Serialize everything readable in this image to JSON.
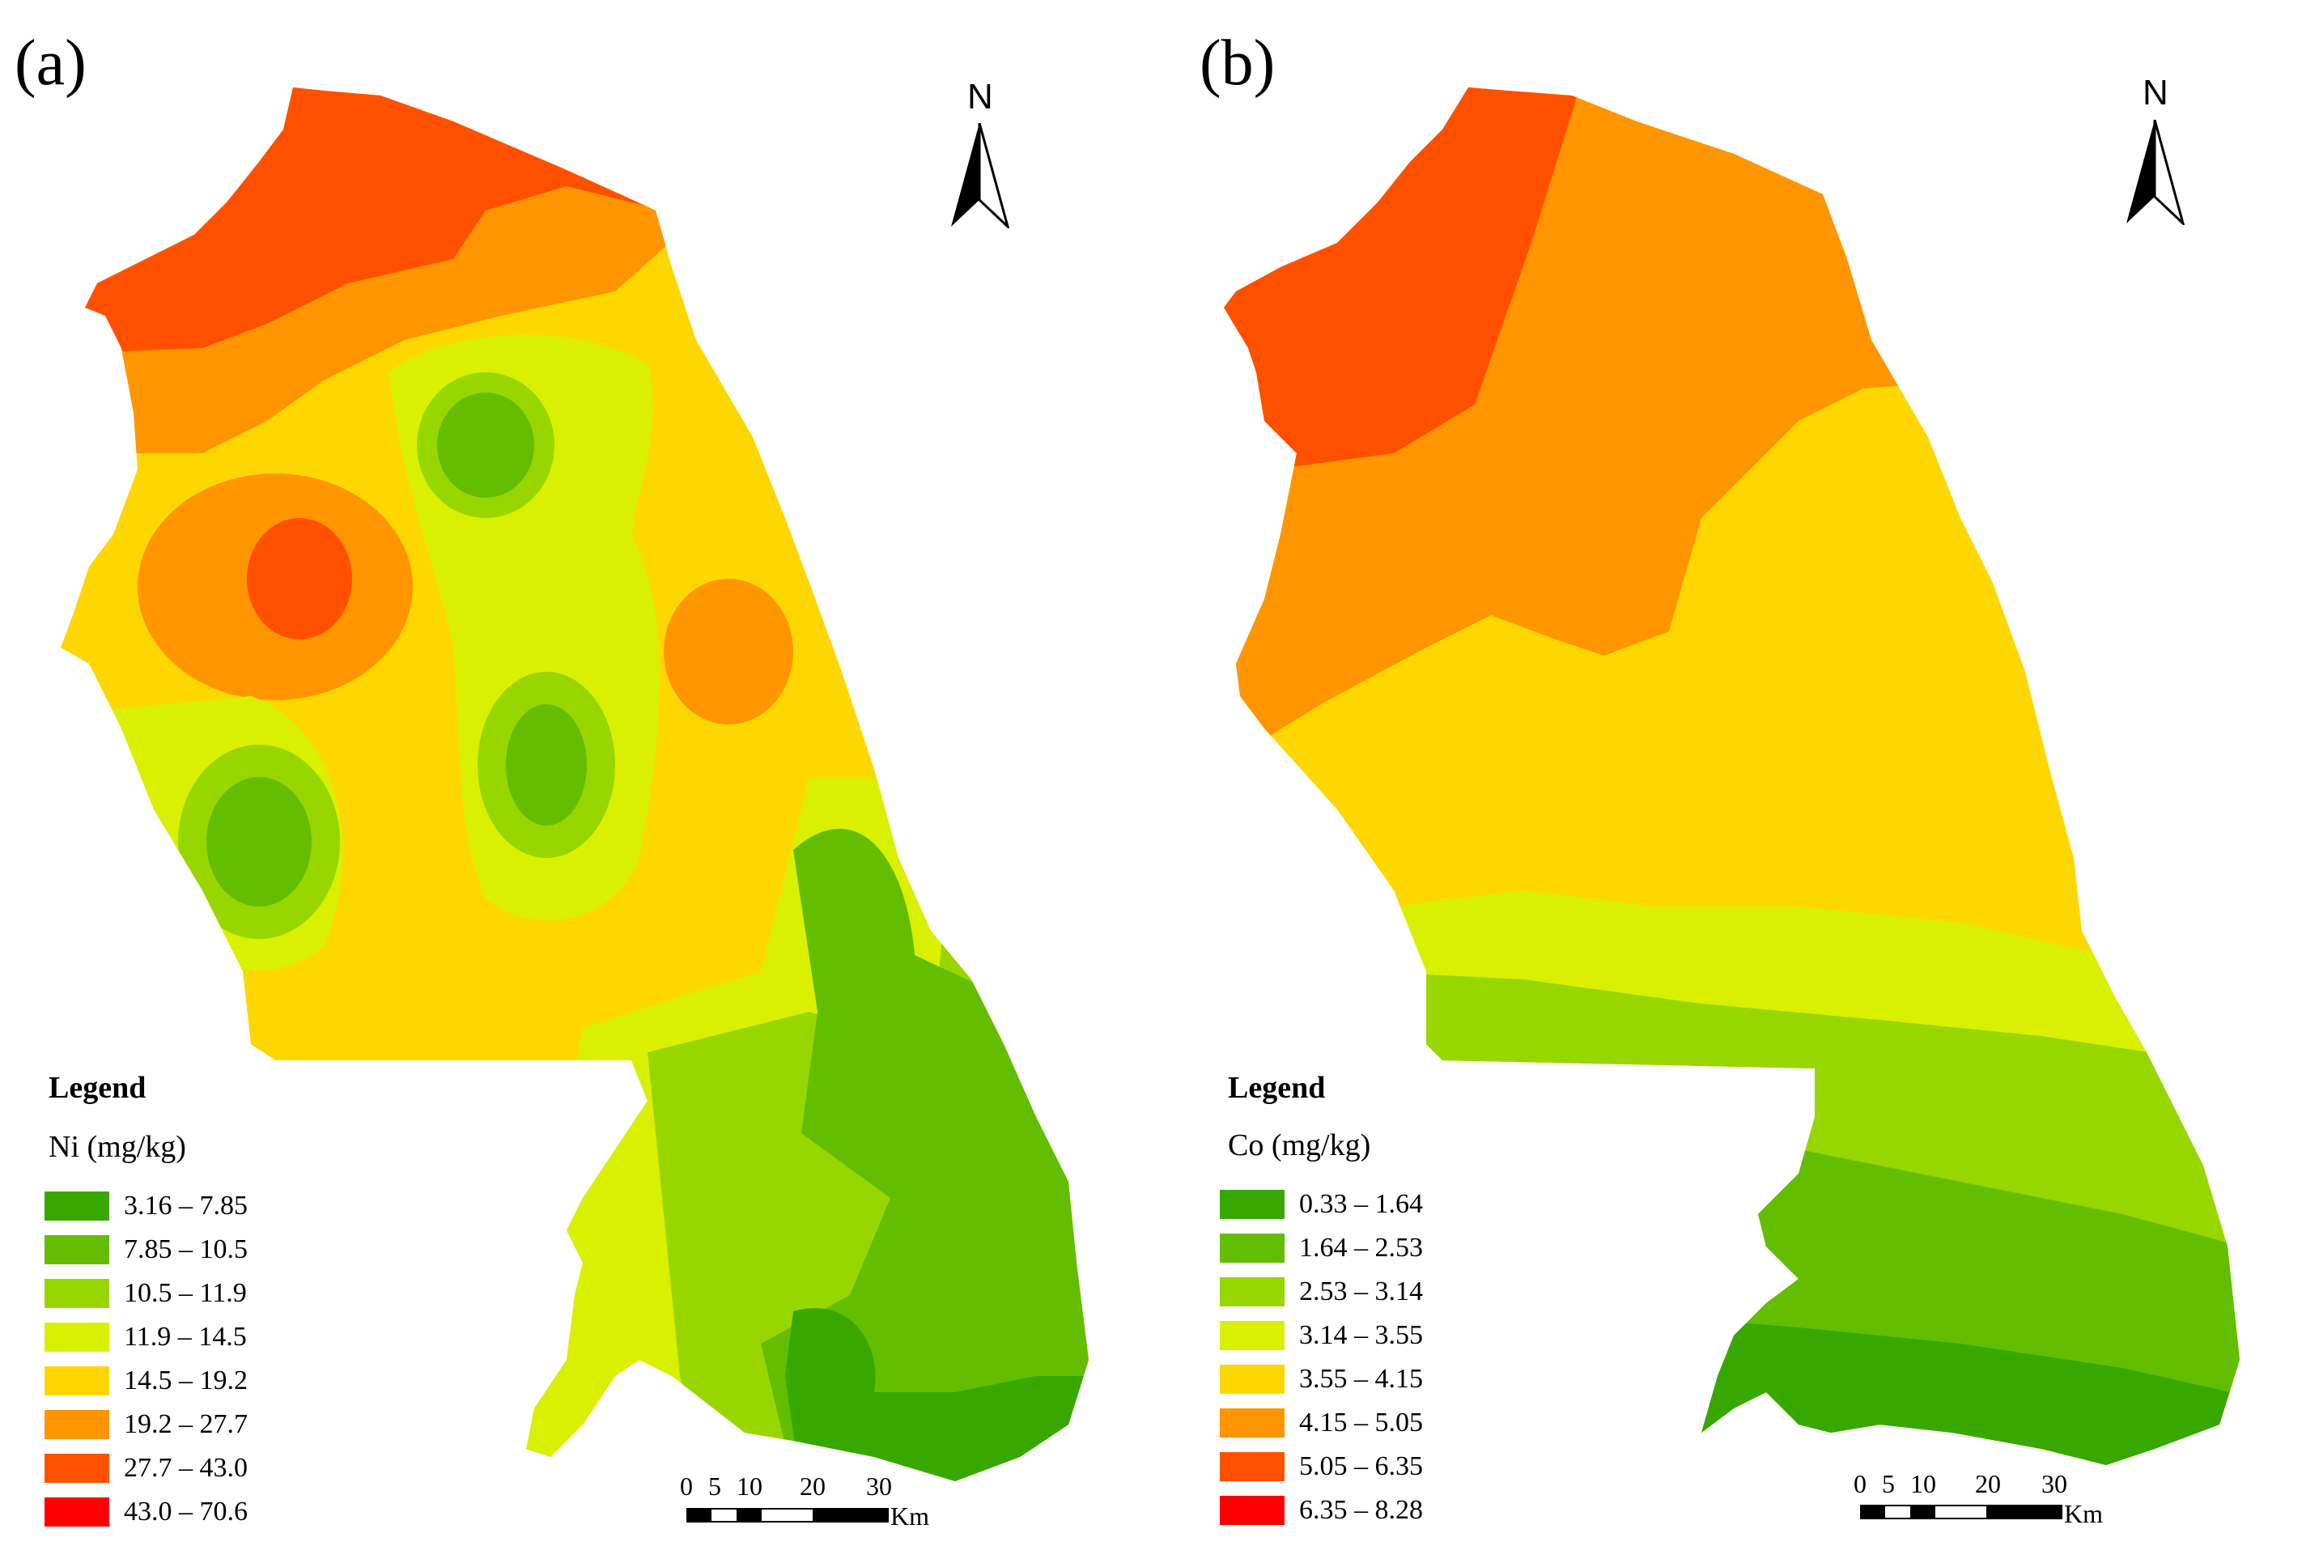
{
  "panels": [
    {
      "label": "(a)",
      "north": "N",
      "legend": {
        "title": "Legend",
        "unit": "Ni (mg/kg)",
        "classes": [
          {
            "range": "3.16 – 7.85",
            "color": "#38a800"
          },
          {
            "range": "7.85 – 10.5",
            "color": "#63bd00"
          },
          {
            "range": "10.5 – 11.9",
            "color": "#98d600"
          },
          {
            "range": "11.9 – 14.5",
            "color": "#d9f000"
          },
          {
            "range": "14.5 – 19.2",
            "color": "#ffd700"
          },
          {
            "range": "19.2 – 27.7",
            "color": "#ff9500"
          },
          {
            "range": "27.7 – 43.0",
            "color": "#ff5000"
          },
          {
            "range": "43.0 – 70.6",
            "color": "#ff0000"
          }
        ]
      },
      "scale": {
        "ticks": [
          "0",
          "5",
          "10",
          "20",
          "30"
        ],
        "unit": "Km"
      }
    },
    {
      "label": "(b)",
      "north": "N",
      "legend": {
        "title": "Legend",
        "unit": "Co (mg/kg)",
        "classes": [
          {
            "range": "0.33 – 1.64",
            "color": "#38a800"
          },
          {
            "range": "1.64 – 2.53",
            "color": "#63bd00"
          },
          {
            "range": "2.53 – 3.14",
            "color": "#98d600"
          },
          {
            "range": "3.14 – 3.55",
            "color": "#d9f000"
          },
          {
            "range": "3.55 – 4.15",
            "color": "#ffd700"
          },
          {
            "range": "4.15 – 5.05",
            "color": "#ff9500"
          },
          {
            "range": "5.05 – 6.35",
            "color": "#ff5000"
          },
          {
            "range": "6.35 – 8.28",
            "color": "#ff0000"
          }
        ]
      },
      "scale": {
        "ticks": [
          "0",
          "5",
          "10",
          "20",
          "30"
        ],
        "unit": "Km"
      }
    }
  ]
}
